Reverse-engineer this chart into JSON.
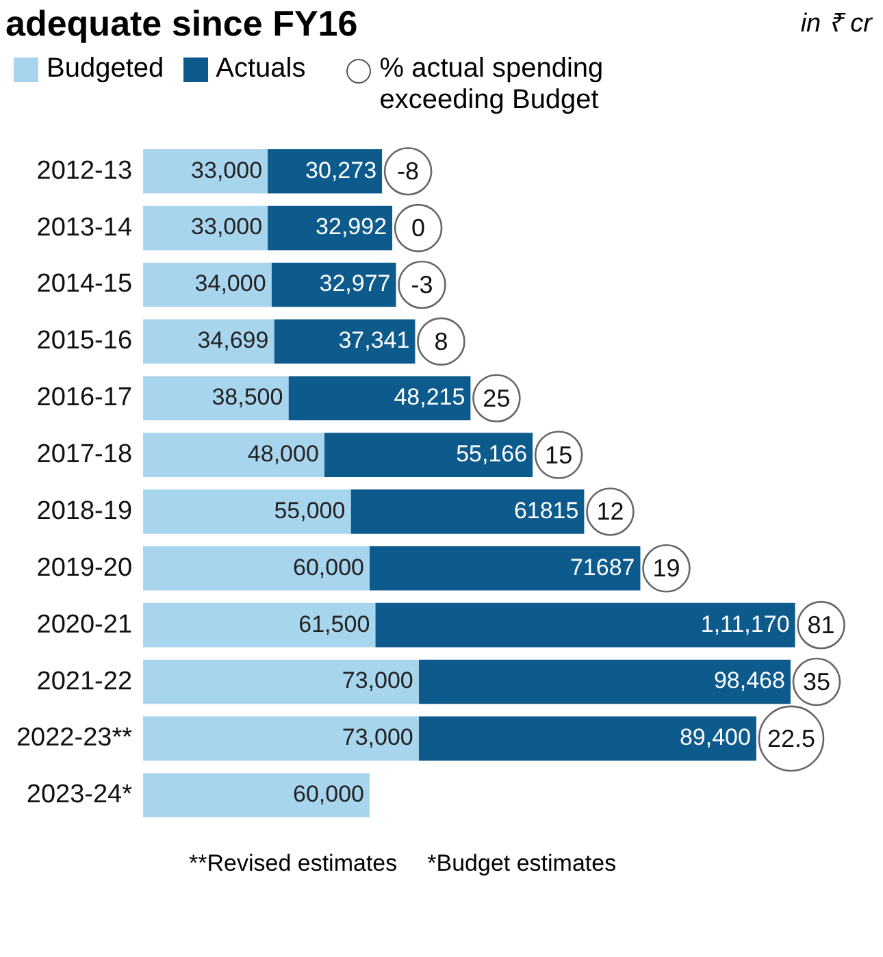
{
  "chart_data": {
    "type": "bar",
    "orientation": "horizontal",
    "stacked": true,
    "title": "adequate since FY16",
    "categories": [
      "2012-13",
      "2013-14",
      "2014-15",
      "2015-16",
      "2016-17",
      "2017-18",
      "2018-19",
      "2019-20",
      "2020-21",
      "2021-22",
      "2022-23**",
      "2023-24*"
    ],
    "series": [
      {
        "name": "Budgeted",
        "color": "#a8d5ee",
        "values": [
          33000,
          33000,
          34000,
          34699,
          38500,
          48000,
          55000,
          60000,
          61500,
          73000,
          73000,
          60000
        ],
        "value_labels": [
          "33,000",
          "33,000",
          "34,000",
          "34,699",
          "38,500",
          "48,000",
          "55,000",
          "60,000",
          "61,500",
          "73,000",
          "73,000",
          "60,000"
        ]
      },
      {
        "name": "Actuals",
        "color": "#0d5a8c",
        "values": [
          30273,
          32992,
          32977,
          37341,
          48215,
          55166,
          61815,
          71687,
          111170,
          98468,
          89400,
          null
        ],
        "value_labels": [
          "30,273",
          "32,992",
          "32,977",
          "37,341",
          "48,215",
          "55,166",
          "61815",
          "71687",
          "1,11,170",
          "98,468",
          "89,400",
          null
        ]
      }
    ],
    "tick_labels": "y",
    "legend": "top left",
    "annotations": [
      "in ₹ cr",
      "% actual spending exceeding Budget",
      "**Revised estimates",
      "*Budget estimates",
      {
        "text": "-8",
        "x": 63273,
        "y": "2012-13"
      },
      {
        "text": "0",
        "x": 65992,
        "y": "2013-14"
      },
      {
        "text": "-3",
        "x": 66977,
        "y": "2014-15"
      },
      {
        "text": "8",
        "x": 72040,
        "y": "2015-16"
      },
      {
        "text": "25",
        "x": 86715,
        "y": "2016-17"
      },
      {
        "text": "15",
        "x": 103166,
        "y": "2017-18"
      },
      {
        "text": "12",
        "x": 116815,
        "y": "2018-19"
      },
      {
        "text": "19",
        "x": 131687,
        "y": "2019-20"
      },
      {
        "text": "81",
        "x": 172670,
        "y": "2020-21"
      },
      {
        "text": "35",
        "x": 171468,
        "y": "2021-22"
      },
      {
        "text": "22.5",
        "x": 162400,
        "y": "2022-23**"
      }
    ]
  }
}
